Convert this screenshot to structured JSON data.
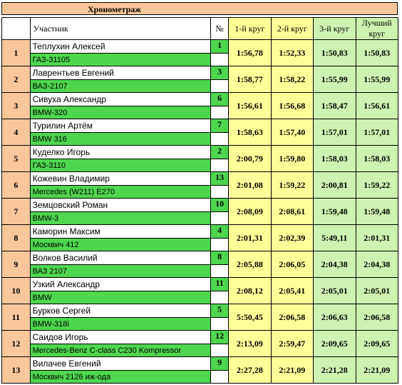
{
  "title": "Хронометраж",
  "headers": {
    "participant": "Участник",
    "number": "№",
    "lap1": "1-й круг",
    "lap2": "2-й круг",
    "lap3": "3-й круг",
    "best": "Лучший круг"
  },
  "rows": [
    {
      "pos": "1",
      "name": "Теплухин Алексей",
      "car": "ГАЗ-31105",
      "num": "1",
      "lap1": "1:56,78",
      "lap2": "1:52,33",
      "lap3": "1:50,83",
      "best": "1:50,83"
    },
    {
      "pos": "2",
      "name": "Лаврентьев Евгений",
      "car": "ВАЗ-2107",
      "num": "3",
      "lap1": "1:58,77",
      "lap2": "1:58,22",
      "lap3": "1:55,99",
      "best": "1:55,99"
    },
    {
      "pos": "3",
      "name": "Сивуха Александр",
      "car": "BMW-320",
      "num": "6",
      "lap1": "1:56,61",
      "lap2": "1:56,68",
      "lap3": "1:58,47",
      "best": "1:56,61"
    },
    {
      "pos": "4",
      "name": "Турилин Артём",
      "car": "BMW 316",
      "num": "7",
      "lap1": "1:58,63",
      "lap2": "1:57,40",
      "lap3": "1:57,01",
      "best": "1:57,01"
    },
    {
      "pos": "5",
      "name": "Куделко Игорь",
      "car": "ГАЗ-3110",
      "num": "2",
      "lap1": "2:00,79",
      "lap2": "1:59,80",
      "lap3": "1:58,03",
      "best": "1:58,03"
    },
    {
      "pos": "6",
      "name": "Кожевин Владимир",
      "car": "Mercedes (W211) E270",
      "num": "13",
      "lap1": "2:01,08",
      "lap2": "1:59,22",
      "lap3": "2:00,81",
      "best": "1:59,22"
    },
    {
      "pos": "7",
      "name": "Земцовский Роман",
      "car": "BMW-3",
      "num": "10",
      "lap1": "2:08,09",
      "lap2": "2:08,61",
      "lap3": "1:59,48",
      "best": "1:59,48"
    },
    {
      "pos": "8",
      "name": "Каморин Максим",
      "car": "Москвич 412",
      "num": "4",
      "lap1": "2:01,31",
      "lap2": "2:02,39",
      "lap3": "5:49,11",
      "best": "2:01,31"
    },
    {
      "pos": "9",
      "name": "Волков Василий",
      "car": "ВАЗ 2107",
      "num": "8",
      "lap1": "2:05,88",
      "lap2": "2:06,05",
      "lap3": "2:04,38",
      "best": "2:04,38"
    },
    {
      "pos": "10",
      "name": "Узкий Александр",
      "car": "BMW",
      "num": "11",
      "lap1": "2:08,12",
      "lap2": "2:05,41",
      "lap3": "2:05,01",
      "best": "2:05,01"
    },
    {
      "pos": "11",
      "name": "Бурков Сергей",
      "car": "BMW-318i",
      "num": "5",
      "lap1": "5:50,45",
      "lap2": "2:06,58",
      "lap3": "2:06,63",
      "best": "2:06,58"
    },
    {
      "pos": "12",
      "name": "Саидов Игорь",
      "car": "Mercedes-Benz C-class C230 Kompressor",
      "num": "12",
      "lap1": "2:13,09",
      "lap2": "2:59,47",
      "lap3": "2:09,65",
      "best": "2:09,65"
    },
    {
      "pos": "13",
      "name": "Вилачев Евгений",
      "car": "Москвич 2126 иж-ода",
      "num": "9",
      "lap1": "2:27,28",
      "lap2": "2:21,09",
      "lap3": "2:21,28",
      "best": "2:21,09"
    }
  ]
}
